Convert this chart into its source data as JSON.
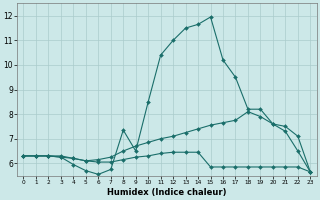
{
  "xlabel": "Humidex (Indice chaleur)",
  "background_color": "#cce8e8",
  "grid_color": "#aacccc",
  "line_color": "#1a6e6a",
  "xlim": [
    -0.5,
    23.5
  ],
  "ylim": [
    5.5,
    12.5
  ],
  "yticks": [
    6,
    7,
    8,
    9,
    10,
    11,
    12
  ],
  "xticks": [
    0,
    1,
    2,
    3,
    4,
    5,
    6,
    7,
    8,
    9,
    10,
    11,
    12,
    13,
    14,
    15,
    16,
    17,
    18,
    19,
    20,
    21,
    22,
    23
  ],
  "line1_x": [
    0,
    1,
    2,
    3,
    4,
    5,
    6,
    7,
    8,
    9,
    10,
    11,
    12,
    13,
    14,
    15,
    16,
    17,
    18,
    19,
    20,
    21,
    22,
    23
  ],
  "line1_y": [
    6.3,
    6.3,
    6.3,
    6.25,
    5.95,
    5.7,
    5.55,
    5.75,
    7.35,
    6.5,
    8.5,
    10.4,
    11.0,
    11.5,
    11.65,
    11.95,
    10.2,
    9.5,
    8.2,
    8.2,
    7.6,
    7.3,
    6.5,
    5.65
  ],
  "line2_x": [
    0,
    1,
    2,
    3,
    4,
    5,
    6,
    7,
    8,
    9,
    10,
    11,
    12,
    13,
    14,
    15,
    16,
    17,
    18,
    19,
    20,
    21,
    22,
    23
  ],
  "line2_y": [
    6.3,
    6.3,
    6.3,
    6.3,
    6.2,
    6.1,
    6.15,
    6.25,
    6.5,
    6.7,
    6.85,
    7.0,
    7.1,
    7.25,
    7.4,
    7.55,
    7.65,
    7.75,
    8.1,
    7.9,
    7.6,
    7.5,
    7.1,
    5.65
  ],
  "line3_x": [
    0,
    1,
    2,
    3,
    4,
    5,
    6,
    7,
    8,
    9,
    10,
    11,
    12,
    13,
    14,
    15,
    16,
    17,
    18,
    19,
    20,
    21,
    22,
    23
  ],
  "line3_y": [
    6.3,
    6.3,
    6.3,
    6.25,
    6.2,
    6.1,
    6.05,
    6.05,
    6.15,
    6.25,
    6.3,
    6.4,
    6.45,
    6.45,
    6.45,
    5.85,
    5.85,
    5.85,
    5.85,
    5.85,
    5.85,
    5.85,
    5.85,
    5.65
  ]
}
